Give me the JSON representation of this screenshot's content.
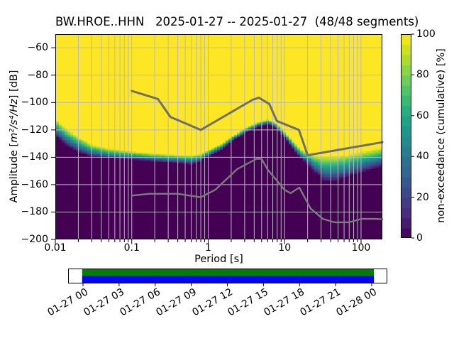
{
  "header": {
    "title": "BW.HROE..HHN   2025-01-27 -- 2025-01-27  (48/48 segments)"
  },
  "chart_data": {
    "type": "heatmap",
    "title": "BW.HROE..HHN   2025-01-27 -- 2025-01-27  (48/48 segments)",
    "xlabel": "Period [s]",
    "ylabel": {
      "prefix": "Amplitude [",
      "math": "m²/s⁴/Hz",
      "suffix": "] [dB]"
    },
    "x_scale": "log",
    "xlim": [
      0.01,
      190
    ],
    "ylim": [
      -200,
      -50
    ],
    "grid_on": true,
    "grid_color": "#b8b8c0",
    "x_major_ticks": [
      {
        "value": 0.01,
        "label": "0.01"
      },
      {
        "value": 0.1,
        "label": "0.1"
      },
      {
        "value": 1,
        "label": "1"
      },
      {
        "value": 10,
        "label": "10"
      },
      {
        "value": 100,
        "label": "100"
      }
    ],
    "y_ticks": [
      {
        "value": -60,
        "label": "−60"
      },
      {
        "value": -80,
        "label": "−80"
      },
      {
        "value": -100,
        "label": "−100"
      },
      {
        "value": -120,
        "label": "−120"
      },
      {
        "value": -140,
        "label": "−140"
      },
      {
        "value": -160,
        "label": "−160"
      },
      {
        "value": -180,
        "label": "−180"
      },
      {
        "value": -200,
        "label": "−200"
      }
    ],
    "heatmap": {
      "x_bin_octave_fraction": 8,
      "db_bin_width": 1,
      "color_levels": 20,
      "band_points": [
        {
          "period": 0.01,
          "db_100pct": -112.0,
          "db_0pct": -125.0
        },
        {
          "period": 0.014,
          "db_100pct": -119.0,
          "db_0pct": -132.0
        },
        {
          "period": 0.02,
          "db_100pct": -125.0,
          "db_0pct": -136.5
        },
        {
          "period": 0.03,
          "db_100pct": -130.5,
          "db_0pct": -139.5
        },
        {
          "period": 0.05,
          "db_100pct": -133.5,
          "db_0pct": -141.0
        },
        {
          "period": 0.1,
          "db_100pct": -135.5,
          "db_0pct": -142.0
        },
        {
          "period": 0.2,
          "db_100pct": -137.0,
          "db_0pct": -143.5
        },
        {
          "period": 0.4,
          "db_100pct": -138.0,
          "db_0pct": -144.5
        },
        {
          "period": 0.6,
          "db_100pct": -138.5,
          "db_0pct": -145.5
        },
        {
          "period": 0.8,
          "db_100pct": -137.5,
          "db_0pct": -143.5
        },
        {
          "period": 1.0,
          "db_100pct": -134.5,
          "db_0pct": -139.5
        },
        {
          "period": 1.5,
          "db_100pct": -130.0,
          "db_0pct": -134.5
        },
        {
          "period": 2.2,
          "db_100pct": -123.5,
          "db_0pct": -127.5
        },
        {
          "period": 3.2,
          "db_100pct": -118.0,
          "db_0pct": -122.0
        },
        {
          "period": 4.5,
          "db_100pct": -114.5,
          "db_0pct": -118.0
        },
        {
          "period": 6.0,
          "db_100pct": -112.5,
          "db_0pct": -116.0
        },
        {
          "period": 7.5,
          "db_100pct": -114.5,
          "db_0pct": -118.5
        },
        {
          "period": 9.0,
          "db_100pct": -118.5,
          "db_0pct": -123.0
        },
        {
          "period": 11.0,
          "db_100pct": -124.0,
          "db_0pct": -129.0
        },
        {
          "period": 13.5,
          "db_100pct": -129.5,
          "db_0pct": -135.5
        },
        {
          "period": 17.0,
          "db_100pct": -134.5,
          "db_0pct": -142.0
        },
        {
          "period": 21.0,
          "db_100pct": -137.0,
          "db_0pct": -146.5
        },
        {
          "period": 26.0,
          "db_100pct": -139.0,
          "db_0pct": -152.0
        },
        {
          "period": 33.0,
          "db_100pct": -139.5,
          "db_0pct": -158.5
        },
        {
          "period": 45.0,
          "db_100pct": -139.0,
          "db_0pct": -158.0
        },
        {
          "period": 65.0,
          "db_100pct": -138.0,
          "db_0pct": -155.0
        },
        {
          "period": 95.0,
          "db_100pct": -136.0,
          "db_0pct": -152.0
        },
        {
          "period": 140.0,
          "db_100pct": -134.0,
          "db_0pct": -149.0
        },
        {
          "period": 190.0,
          "db_100pct": -132.5,
          "db_0pct": -147.0
        }
      ]
    },
    "colormap": {
      "name": "viridis",
      "stops": [
        [
          0.0,
          "#440154"
        ],
        [
          0.0625,
          "#48186a"
        ],
        [
          0.125,
          "#472d7b"
        ],
        [
          0.1875,
          "#424086"
        ],
        [
          0.25,
          "#3b528b"
        ],
        [
          0.3125,
          "#33638d"
        ],
        [
          0.375,
          "#2c728e"
        ],
        [
          0.4375,
          "#26828e"
        ],
        [
          0.5,
          "#21918c"
        ],
        [
          0.5625,
          "#1fa088"
        ],
        [
          0.625,
          "#28ae80"
        ],
        [
          0.6875,
          "#3fbc73"
        ],
        [
          0.75,
          "#5ec962"
        ],
        [
          0.8125,
          "#84d44b"
        ],
        [
          0.875,
          "#addc30"
        ],
        [
          0.9375,
          "#d8e219"
        ],
        [
          1.0,
          "#fde725"
        ]
      ]
    },
    "colorbar": {
      "label": "non-exceedance (cumulative) [%]",
      "levels": 20,
      "range": [
        0,
        100
      ],
      "ticks": [
        {
          "value": 0,
          "label": "0"
        },
        {
          "value": 20,
          "label": "20"
        },
        {
          "value": 40,
          "label": "40"
        },
        {
          "value": 60,
          "label": "60"
        },
        {
          "value": 80,
          "label": "80"
        },
        {
          "value": 100,
          "label": "100"
        }
      ]
    },
    "noise_models": {
      "high_color": "#6e6e6e",
      "low_color": "#7c7c7c",
      "high": [
        [
          0.1,
          -91.5
        ],
        [
          0.22,
          -97.4
        ],
        [
          0.32,
          -110.5
        ],
        [
          0.8,
          -120.0
        ],
        [
          3.8,
          -98.0
        ],
        [
          4.6,
          -96.5
        ],
        [
          6.3,
          -101.0
        ],
        [
          7.9,
          -113.5
        ],
        [
          15.4,
          -120.0
        ],
        [
          20.0,
          -138.5
        ],
        [
          190.0,
          -129.0
        ]
      ],
      "low": [
        [
          0.1,
          -168.0
        ],
        [
          0.17,
          -166.7
        ],
        [
          0.4,
          -166.7
        ],
        [
          0.8,
          -169.2
        ],
        [
          1.24,
          -163.7
        ],
        [
          2.4,
          -148.6
        ],
        [
          4.3,
          -141.1
        ],
        [
          5.0,
          -141.1
        ],
        [
          6.0,
          -149.0
        ],
        [
          10.0,
          -163.8
        ],
        [
          12.0,
          -166.2
        ],
        [
          15.6,
          -162.1
        ],
        [
          21.9,
          -177.5
        ],
        [
          31.6,
          -185.0
        ],
        [
          45.0,
          -187.5
        ],
        [
          70.0,
          -187.5
        ],
        [
          101.0,
          -185.0
        ],
        [
          154.0,
          -185.0
        ],
        [
          190.0,
          -185.3
        ]
      ]
    },
    "timeline": {
      "tick_labels": [
        "01-27 00",
        "01-27 03",
        "01-27 06",
        "01-27 09",
        "01-27 12",
        "01-27 15",
        "01-27 18",
        "01-27 21",
        "01-28 00"
      ],
      "axis_start_frac": 0.0467,
      "axis_end_frac": 0.951,
      "fill_start_frac": 0.044,
      "fill_end_frac": 0.958,
      "segments_color": "#008000",
      "coverage_color": "#0000ff",
      "box_background": "#ffffff",
      "box_border": "#000000"
    }
  }
}
